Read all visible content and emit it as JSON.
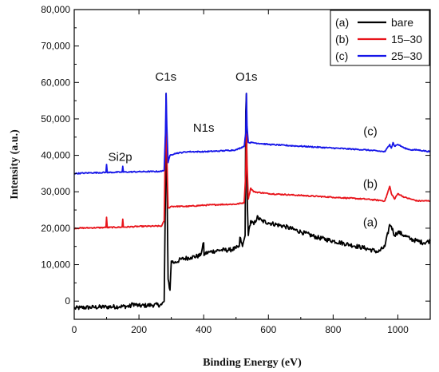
{
  "chart_data": {
    "type": "line",
    "title": "",
    "xlabel": "Binding Energy (eV)",
    "ylabel": "Intensity (a.u.)",
    "xlim": [
      0,
      1100
    ],
    "ylim": [
      -5000,
      80000
    ],
    "xticks": [
      0,
      200,
      400,
      600,
      800,
      1000
    ],
    "yticks": [
      0,
      10000,
      20000,
      30000,
      40000,
      50000,
      60000,
      70000,
      80000
    ],
    "ytick_labels": [
      "0",
      "10,000",
      "20,000",
      "30,000",
      "40,000",
      "50,000",
      "60,000",
      "70,000",
      "80,000"
    ],
    "legend_position": "top-right",
    "series": [
      {
        "name": "bare",
        "key": "(a)",
        "color": "#000000",
        "x": [
          0,
          20,
          60,
          100,
          140,
          175,
          180,
          200,
          240,
          270,
          278,
          282,
          284,
          286,
          290,
          296,
          300,
          310,
          330,
          360,
          390,
          400,
          401,
          402,
          420,
          450,
          480,
          500,
          510,
          512,
          520,
          528,
          530,
          532,
          534,
          538,
          545,
          555,
          565,
          580,
          600,
          650,
          700,
          750,
          800,
          850,
          900,
          940,
          960,
          975,
          980,
          990,
          1000,
          1020,
          1040,
          1060,
          1080,
          1100
        ],
        "y": [
          -2000,
          -1800,
          -1700,
          -1600,
          -1500,
          -1400,
          -700,
          -1300,
          -1100,
          -1000,
          0,
          30000,
          57000,
          35000,
          6000,
          3000,
          11000,
          10500,
          11500,
          12000,
          12500,
          16000,
          12500,
          13000,
          13500,
          14000,
          14000,
          14500,
          15000,
          17500,
          15000,
          18000,
          52000,
          57000,
          30000,
          18000,
          22000,
          21000,
          23000,
          22000,
          21500,
          20500,
          19000,
          17500,
          16500,
          15500,
          14500,
          13500,
          15000,
          21000,
          20500,
          18000,
          19000,
          18000,
          17000,
          16500,
          16000,
          16500
        ]
      },
      {
        "name": "15–30",
        "key": "(b)",
        "color": "#e8141b",
        "x": [
          0,
          50,
          98,
          100,
          102,
          148,
          150,
          152,
          200,
          270,
          278,
          282,
          284,
          286,
          290,
          300,
          350,
          400,
          450,
          500,
          525,
          530,
          532,
          534,
          538,
          545,
          555,
          600,
          700,
          800,
          900,
          960,
          975,
          980,
          990,
          1000,
          1020,
          1040,
          1060,
          1100
        ],
        "y": [
          20000,
          20100,
          20200,
          23000,
          20200,
          20300,
          22500,
          20300,
          20500,
          20600,
          22000,
          45000,
          47500,
          40000,
          25500,
          26000,
          26000,
          26300,
          26500,
          26600,
          27000,
          35000,
          46000,
          38000,
          28000,
          31000,
          30000,
          29500,
          29000,
          28500,
          28000,
          27500,
          31500,
          29500,
          28000,
          29500,
          28500,
          28000,
          27500,
          27500
        ]
      },
      {
        "name": "25–30",
        "key": "(c)",
        "color": "#1616e8",
        "x": [
          0,
          50,
          98,
          100,
          102,
          148,
          150,
          152,
          200,
          270,
          278,
          282,
          284,
          286,
          290,
          296,
          310,
          350,
          400,
          450,
          500,
          525,
          530,
          532,
          534,
          538,
          550,
          600,
          700,
          800,
          900,
          960,
          975,
          980,
          985,
          990,
          1000,
          1020,
          1040,
          1060,
          1100
        ],
        "y": [
          35000,
          35200,
          35300,
          37500,
          35300,
          35400,
          37000,
          35400,
          35500,
          35600,
          36000,
          46000,
          57000,
          48000,
          38000,
          40000,
          40500,
          41000,
          41000,
          41200,
          41500,
          42500,
          46000,
          57000,
          48000,
          43500,
          43500,
          43000,
          42500,
          42000,
          41500,
          41000,
          43000,
          42000,
          43500,
          42500,
          43000,
          42000,
          41500,
          41500,
          41000
        ]
      }
    ],
    "annotations": [
      {
        "text": "Si2p",
        "x": 142,
        "y": 38500
      },
      {
        "text": "C1s",
        "x": 283,
        "y": 60500
      },
      {
        "text": "N1s",
        "x": 400,
        "y": 46500
      },
      {
        "text": "O1s",
        "x": 532,
        "y": 60500
      },
      {
        "text": "(c)",
        "x": 915,
        "y": 45500
      },
      {
        "text": "(b)",
        "x": 915,
        "y": 31000
      },
      {
        "text": "(a)",
        "x": 915,
        "y": 20500
      }
    ],
    "noise": {
      "bare": 600,
      "15–30": 160,
      "25–30": 160
    }
  }
}
